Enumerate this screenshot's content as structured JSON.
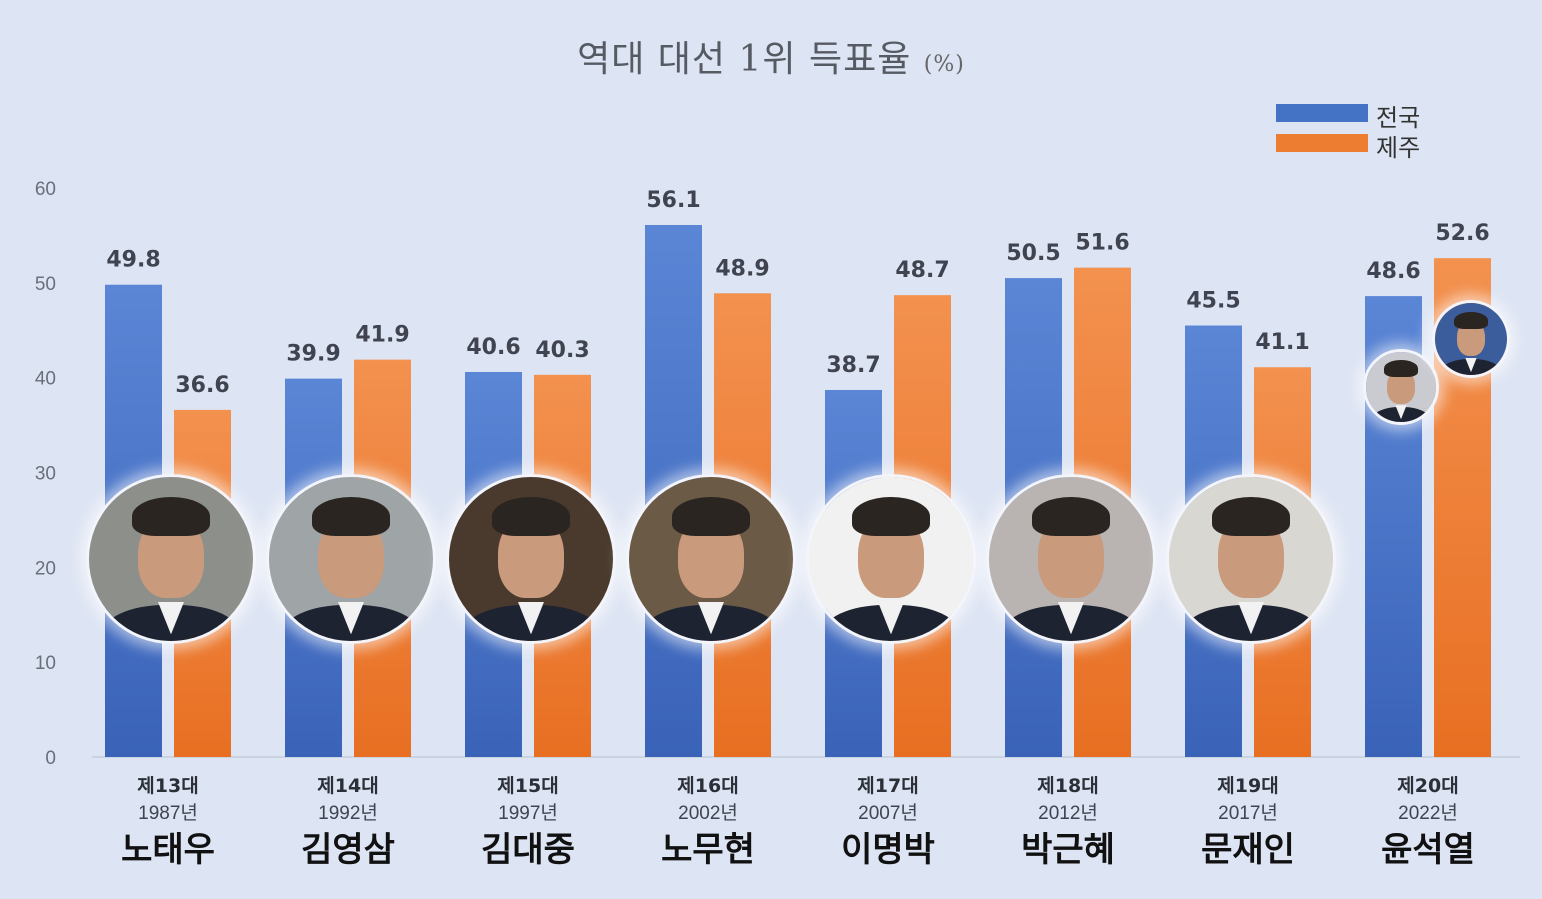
{
  "title": "역대 대선 1위 득표율",
  "title_unit": "(%)",
  "legend": [
    {
      "label": "전국",
      "color": "#4472c4"
    },
    {
      "label": "제주",
      "color": "#ed7d31"
    }
  ],
  "chart_data": {
    "type": "bar",
    "title": "역대 대선 1위 득표율 (%)",
    "ylim": [
      0,
      60
    ],
    "yticks": [
      0,
      10,
      20,
      30,
      40,
      50,
      60
    ],
    "grid": false,
    "legend_position": "top-right",
    "categories": [
      {
        "ordinal": "제13대",
        "year": "1987년",
        "name": "노태우"
      },
      {
        "ordinal": "제14대",
        "year": "1992년",
        "name": "김영삼"
      },
      {
        "ordinal": "제15대",
        "year": "1997년",
        "name": "김대중"
      },
      {
        "ordinal": "제16대",
        "year": "2002년",
        "name": "노무현"
      },
      {
        "ordinal": "제17대",
        "year": "2007년",
        "name": "이명박"
      },
      {
        "ordinal": "제18대",
        "year": "2012년",
        "name": "박근혜"
      },
      {
        "ordinal": "제19대",
        "year": "2017년",
        "name": "문재인"
      },
      {
        "ordinal": "제20대",
        "year": "2022년",
        "name": "윤석열"
      }
    ],
    "series": [
      {
        "name": "전국",
        "color": "#4472c4",
        "values": [
          49.8,
          39.9,
          40.6,
          56.1,
          38.7,
          50.5,
          45.5,
          48.6
        ]
      },
      {
        "name": "제주",
        "color": "#ed7d31",
        "values": [
          36.6,
          41.9,
          40.3,
          48.9,
          48.7,
          51.6,
          41.1,
          52.6
        ]
      }
    ]
  }
}
